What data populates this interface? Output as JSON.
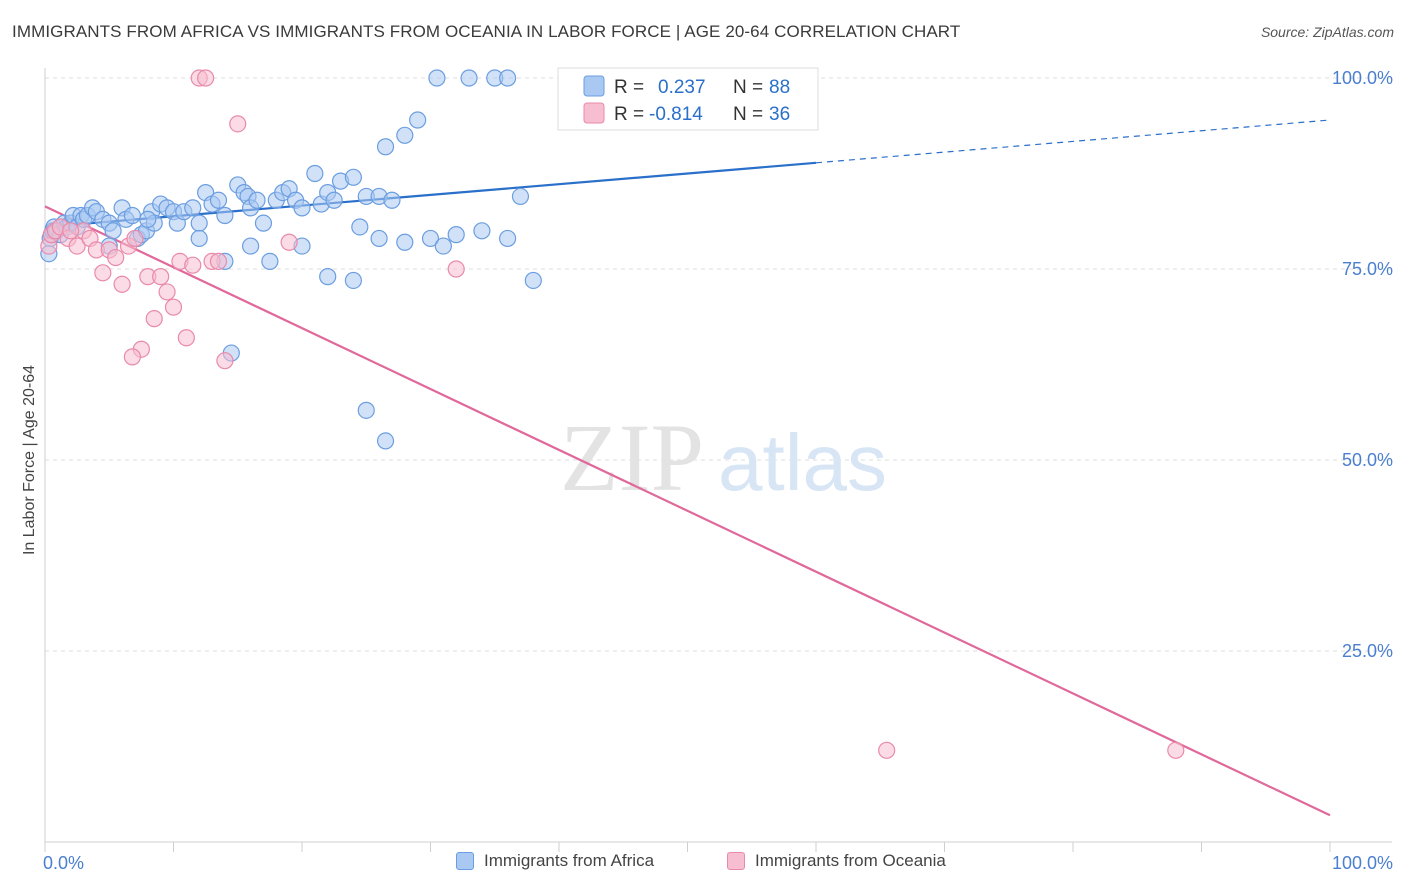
{
  "title": "IMMIGRANTS FROM AFRICA VS IMMIGRANTS FROM OCEANIA IN LABOR FORCE | AGE 20-64 CORRELATION CHART",
  "source": "Source: ZipAtlas.com",
  "watermark": {
    "zip": "ZIP",
    "atlas": "atlas"
  },
  "colors": {
    "africa_fill": "#a9c8f2",
    "africa_stroke": "#6b9ee0",
    "africa_line": "#2a6fca",
    "oceania_fill": "#f7bdd0",
    "oceania_stroke": "#e98aab",
    "oceania_line": "#e0689a",
    "tick_label": "#4a7fd0",
    "grid": "#dedede"
  },
  "stats": {
    "africa": {
      "r_label": "R =",
      "r_value": "0.237",
      "n_label": "N =",
      "n_value": "88"
    },
    "oceania": {
      "r_label": "R =",
      "r_value": "-0.814",
      "n_label": "N =",
      "n_value": "36"
    }
  },
  "chart_data": {
    "type": "scatter",
    "title": "IMMIGRANTS FROM AFRICA VS IMMIGRANTS FROM OCEANIA IN LABOR FORCE | AGE 20-64 CORRELATION CHART",
    "xlabel": "",
    "ylabel": "In Labor Force | Age 20-64",
    "xlim": [
      0,
      100
    ],
    "ylim": [
      0,
      100
    ],
    "x_tick_labels": [
      "0.0%",
      "100.0%"
    ],
    "y_ticks": [
      25,
      50,
      75,
      100
    ],
    "y_tick_labels": [
      "25.0%",
      "50.0%",
      "75.0%",
      "100.0%"
    ],
    "legend_position": "bottom-center",
    "series": [
      {
        "name": "Immigrants from Africa",
        "r": 0.237,
        "n": 88,
        "trend": {
          "x0": 0,
          "y0": 80.5,
          "x1": 60,
          "y1": 88.9,
          "dashed_to_x": 100,
          "dashed_to_y": 94.5
        },
        "points": [
          [
            0.3,
            77
          ],
          [
            0.4,
            79
          ],
          [
            0.5,
            79.5
          ],
          [
            0.6,
            80
          ],
          [
            0.7,
            80.5
          ],
          [
            0.9,
            80
          ],
          [
            1.2,
            79.5
          ],
          [
            1.5,
            81
          ],
          [
            1.7,
            80.5
          ],
          [
            2,
            81
          ],
          [
            2.2,
            82
          ],
          [
            2.5,
            80.5
          ],
          [
            2.8,
            82
          ],
          [
            3,
            81.5
          ],
          [
            3.3,
            82
          ],
          [
            3.7,
            83
          ],
          [
            4,
            82.5
          ],
          [
            4.5,
            81.5
          ],
          [
            5,
            81
          ],
          [
            5.3,
            80
          ],
          [
            6,
            83
          ],
          [
            6.3,
            81.5
          ],
          [
            6.8,
            82
          ],
          [
            7.2,
            79
          ],
          [
            7.5,
            79.5
          ],
          [
            7.9,
            80
          ],
          [
            8.3,
            82.5
          ],
          [
            8.5,
            81
          ],
          [
            9,
            83.5
          ],
          [
            9.5,
            83
          ],
          [
            10,
            82.5
          ],
          [
            10.3,
            81
          ],
          [
            10.8,
            82.5
          ],
          [
            11.5,
            83
          ],
          [
            12,
            81
          ],
          [
            12.5,
            85
          ],
          [
            13,
            83.5
          ],
          [
            13.5,
            84
          ],
          [
            14,
            82
          ],
          [
            15,
            86
          ],
          [
            15.5,
            85
          ],
          [
            15.8,
            84.5
          ],
          [
            16,
            83
          ],
          [
            16.5,
            84
          ],
          [
            17,
            81
          ],
          [
            18,
            84
          ],
          [
            18.5,
            85
          ],
          [
            19,
            85.5
          ],
          [
            19.5,
            84
          ],
          [
            20,
            83
          ],
          [
            21,
            87.5
          ],
          [
            21.5,
            83.5
          ],
          [
            22,
            85
          ],
          [
            22.5,
            84
          ],
          [
            23,
            86.5
          ],
          [
            24,
            87
          ],
          [
            25,
            84.5
          ],
          [
            26,
            84.5
          ],
          [
            26.5,
            91
          ],
          [
            28,
            92.5
          ],
          [
            29,
            94.5
          ],
          [
            30.5,
            100
          ],
          [
            33,
            100
          ],
          [
            35,
            100
          ],
          [
            36,
            100
          ],
          [
            37,
            84.5
          ],
          [
            8,
            81.5
          ],
          [
            12,
            79
          ],
          [
            14,
            76
          ],
          [
            16,
            78
          ],
          [
            17.5,
            76
          ],
          [
            20,
            78
          ],
          [
            22,
            74
          ],
          [
            24,
            73.5
          ],
          [
            26,
            79
          ],
          [
            28,
            78.5
          ],
          [
            30,
            79
          ],
          [
            32,
            79.5
          ],
          [
            34,
            80
          ],
          [
            36,
            79
          ],
          [
            38,
            73.5
          ],
          [
            31,
            78
          ],
          [
            24.5,
            80.5
          ],
          [
            27,
            84
          ],
          [
            14.5,
            64
          ],
          [
            25,
            56.5
          ],
          [
            26.5,
            52.5
          ],
          [
            5,
            78
          ]
        ]
      },
      {
        "name": "Immigrants from Oceania",
        "r": -0.814,
        "n": 36,
        "trend": {
          "x0": 0,
          "y0": 83.2,
          "x1": 100,
          "y1": 3.5
        },
        "points": [
          [
            0.3,
            78
          ],
          [
            0.5,
            79.5
          ],
          [
            0.8,
            80
          ],
          [
            1.2,
            80.5
          ],
          [
            1.8,
            79
          ],
          [
            2.5,
            78
          ],
          [
            3,
            80
          ],
          [
            3.5,
            79
          ],
          [
            4,
            77.5
          ],
          [
            4.5,
            74.5
          ],
          [
            5,
            77.5
          ],
          [
            5.5,
            76.5
          ],
          [
            6,
            73
          ],
          [
            6.5,
            78
          ],
          [
            7,
            79
          ],
          [
            7.5,
            64.5
          ],
          [
            8,
            74
          ],
          [
            8.5,
            68.5
          ],
          [
            9,
            74
          ],
          [
            9.5,
            72
          ],
          [
            10,
            70
          ],
          [
            10.5,
            76
          ],
          [
            11,
            66
          ],
          [
            11.5,
            75.5
          ],
          [
            12,
            100
          ],
          [
            12.5,
            100
          ],
          [
            13,
            76
          ],
          [
            13.5,
            76
          ],
          [
            14,
            63
          ],
          [
            15,
            94
          ],
          [
            19,
            78.5
          ],
          [
            32,
            75
          ],
          [
            65.5,
            12
          ],
          [
            88,
            12
          ],
          [
            2,
            80
          ],
          [
            6.8,
            63.5
          ]
        ]
      }
    ]
  },
  "legend": {
    "africa_label": "Immigrants from Africa",
    "oceania_label": "Immigrants from Oceania"
  }
}
